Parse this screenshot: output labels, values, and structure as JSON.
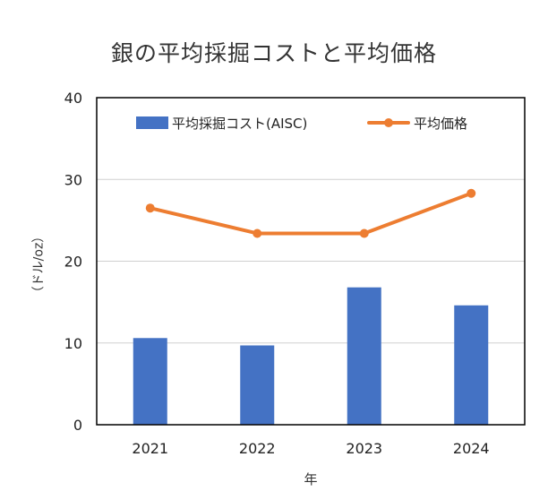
{
  "chart_data": {
    "type": "bar+line",
    "title": "銀の平均採掘コストと平均価格",
    "xlabel": "年",
    "ylabel": "（ドル/oz）",
    "categories": [
      "2021",
      "2022",
      "2023",
      "2024"
    ],
    "series": [
      {
        "name": "平均採掘コスト(AISC)",
        "type": "bar",
        "color": "#4472C4",
        "values": [
          10.6,
          9.7,
          16.8,
          14.6
        ]
      },
      {
        "name": "平均価格",
        "type": "line",
        "color": "#ED7D31",
        "values": [
          26.5,
          23.4,
          23.4,
          28.3
        ]
      }
    ],
    "ylim": [
      0,
      40
    ],
    "yticks": [
      "0",
      "10",
      "20",
      "30",
      "40"
    ],
    "grid": true,
    "legend": "top"
  }
}
